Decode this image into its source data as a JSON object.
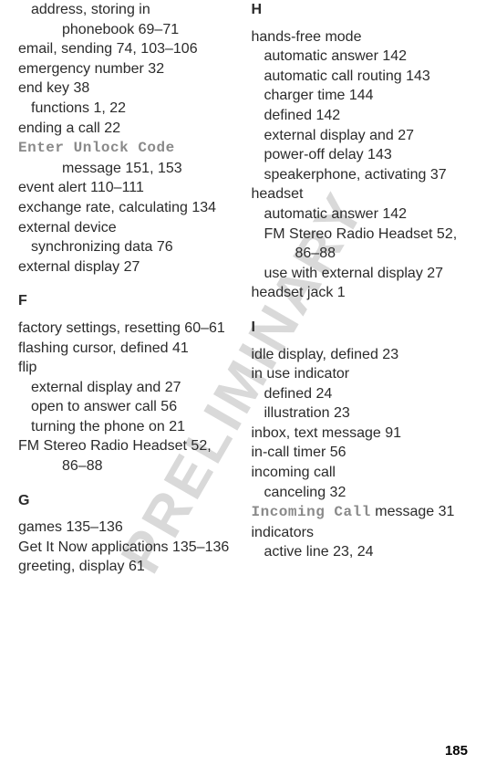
{
  "watermark_text": "PRELIMINARY",
  "page_number": "185",
  "columns": [
    [
      {
        "lvl": 1,
        "hang": false,
        "segs": [
          {
            "t": "address, storing in"
          }
        ]
      },
      {
        "lvl": 2,
        "hang": false,
        "segs": [
          {
            "t": "phonebook  69–71"
          }
        ]
      },
      {
        "lvl": 0,
        "hang": true,
        "segs": [
          {
            "t": "email, sending  74, 103–106"
          }
        ]
      },
      {
        "lvl": 0,
        "hang": false,
        "segs": [
          {
            "t": "emergency number  32"
          }
        ]
      },
      {
        "lvl": 0,
        "hang": false,
        "segs": [
          {
            "t": "end key  38"
          }
        ]
      },
      {
        "lvl": 1,
        "hang": false,
        "segs": [
          {
            "t": "functions  1, 22"
          }
        ]
      },
      {
        "lvl": 0,
        "hang": false,
        "segs": [
          {
            "t": "ending a call  22"
          }
        ]
      },
      {
        "lvl": 0,
        "hang": true,
        "segs": [
          {
            "t": "Enter Unlock Code",
            "cls": "mono"
          },
          {
            "t": " message  151, 153"
          }
        ]
      },
      {
        "lvl": 0,
        "hang": false,
        "segs": [
          {
            "t": "event alert  110–111"
          }
        ]
      },
      {
        "lvl": 0,
        "hang": true,
        "segs": [
          {
            "t": "exchange rate, calculating  134"
          }
        ]
      },
      {
        "lvl": 0,
        "hang": false,
        "segs": [
          {
            "t": "external device"
          }
        ]
      },
      {
        "lvl": 1,
        "hang": false,
        "segs": [
          {
            "t": "synchronizing data  76"
          }
        ]
      },
      {
        "lvl": 0,
        "hang": false,
        "segs": [
          {
            "t": "external display  27"
          }
        ]
      },
      {
        "lvl": 0,
        "head": true,
        "segs": [
          {
            "t": "F"
          }
        ]
      },
      {
        "lvl": 0,
        "hang": true,
        "segs": [
          {
            "t": "factory settings, resetting  60–61"
          }
        ]
      },
      {
        "lvl": 0,
        "hang": true,
        "segs": [
          {
            "t": "flashing cursor, defined  41"
          }
        ]
      },
      {
        "lvl": 0,
        "hang": false,
        "segs": [
          {
            "t": "flip"
          }
        ]
      },
      {
        "lvl": 1,
        "hang": false,
        "segs": [
          {
            "t": "external display and  27"
          }
        ]
      },
      {
        "lvl": 1,
        "hang": false,
        "segs": [
          {
            "t": "open to answer call  56"
          }
        ]
      },
      {
        "lvl": 1,
        "hang": false,
        "segs": [
          {
            "t": "turning the phone on  21"
          }
        ]
      },
      {
        "lvl": 0,
        "hang": true,
        "segs": [
          {
            "t": "FM Stereo Radio Headset  52, 86–88"
          }
        ]
      },
      {
        "lvl": 0,
        "head": true,
        "segs": [
          {
            "t": "G"
          }
        ]
      },
      {
        "lvl": 0,
        "hang": false,
        "segs": [
          {
            "t": "games  135–136"
          }
        ]
      },
      {
        "lvl": 0,
        "hang": true,
        "segs": [
          {
            "t": "Get It Now applications  135–136"
          }
        ]
      },
      {
        "lvl": 0,
        "hang": false,
        "segs": [
          {
            "t": "greeting, display  61"
          }
        ]
      }
    ],
    [
      {
        "lvl": 0,
        "head": true,
        "first": true,
        "segs": [
          {
            "t": "H"
          }
        ]
      },
      {
        "lvl": 0,
        "hang": false,
        "segs": [
          {
            "t": "hands-free mode"
          }
        ]
      },
      {
        "lvl": 1,
        "hang": false,
        "segs": [
          {
            "t": "automatic answer  142"
          }
        ]
      },
      {
        "lvl": 1,
        "hang": true,
        "segs": [
          {
            "t": "automatic call routing  143"
          }
        ]
      },
      {
        "lvl": 1,
        "hang": false,
        "segs": [
          {
            "t": "charger time  144"
          }
        ]
      },
      {
        "lvl": 1,
        "hang": false,
        "segs": [
          {
            "t": "defined  142"
          }
        ]
      },
      {
        "lvl": 1,
        "hang": false,
        "segs": [
          {
            "t": "external display and  27"
          }
        ]
      },
      {
        "lvl": 1,
        "hang": false,
        "segs": [
          {
            "t": "power-off delay  143"
          }
        ]
      },
      {
        "lvl": 1,
        "hang": true,
        "segs": [
          {
            "t": "speakerphone, activating  37"
          }
        ]
      },
      {
        "lvl": 0,
        "hang": false,
        "segs": [
          {
            "t": "headset"
          }
        ]
      },
      {
        "lvl": 1,
        "hang": false,
        "segs": [
          {
            "t": "automatic answer  142"
          }
        ]
      },
      {
        "lvl": 1,
        "hang": true,
        "segs": [
          {
            "t": "FM Stereo Radio Headset  52, 86–88"
          }
        ]
      },
      {
        "lvl": 1,
        "hang": true,
        "segs": [
          {
            "t": "use with external display  27"
          }
        ]
      },
      {
        "lvl": 0,
        "hang": false,
        "segs": [
          {
            "t": "headset jack  1"
          }
        ]
      },
      {
        "lvl": 0,
        "head": true,
        "segs": [
          {
            "t": "I"
          }
        ]
      },
      {
        "lvl": 0,
        "hang": false,
        "segs": [
          {
            "t": "idle display, defined  23"
          }
        ]
      },
      {
        "lvl": 0,
        "hang": false,
        "segs": [
          {
            "t": "in use indicator"
          }
        ]
      },
      {
        "lvl": 1,
        "hang": false,
        "segs": [
          {
            "t": "defined  24"
          }
        ]
      },
      {
        "lvl": 1,
        "hang": false,
        "segs": [
          {
            "t": "illustration  23"
          }
        ]
      },
      {
        "lvl": 0,
        "hang": false,
        "segs": [
          {
            "t": "inbox, text message  91"
          }
        ]
      },
      {
        "lvl": 0,
        "hang": false,
        "segs": [
          {
            "t": "in-call timer  56"
          }
        ]
      },
      {
        "lvl": 0,
        "hang": false,
        "segs": [
          {
            "t": "incoming call"
          }
        ]
      },
      {
        "lvl": 1,
        "hang": false,
        "segs": [
          {
            "t": "canceling  32"
          }
        ]
      },
      {
        "lvl": 0,
        "hang": true,
        "segs": [
          {
            "t": "Incoming Call",
            "cls": "mono"
          },
          {
            "t": " message  31"
          }
        ]
      },
      {
        "lvl": 0,
        "hang": false,
        "segs": [
          {
            "t": "indicators"
          }
        ]
      },
      {
        "lvl": 1,
        "hang": false,
        "segs": [
          {
            "t": "active line  23, 24"
          }
        ]
      }
    ]
  ]
}
